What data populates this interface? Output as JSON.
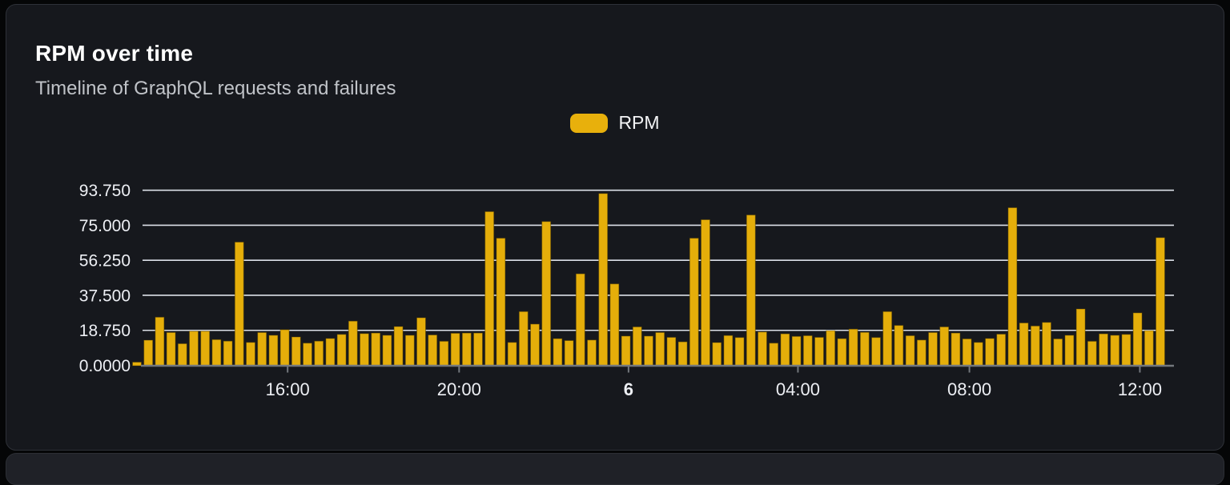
{
  "card": {
    "title": "RPM over time",
    "subtitle": "Timeline of GraphQL requests and failures"
  },
  "legend": {
    "items": [
      {
        "label": "RPM",
        "color": "#E8B00C"
      }
    ]
  },
  "chart_data": {
    "type": "bar",
    "title": "RPM over time",
    "subtitle": "Timeline of GraphQL requests and failures",
    "xlabel": "",
    "ylabel": "",
    "grid": true,
    "legend_position": "top-center",
    "y_max": 93.75,
    "y_ticks": [
      {
        "label": "0.0000",
        "value": 0
      },
      {
        "label": "18.750",
        "value": 18.75
      },
      {
        "label": "37.500",
        "value": 37.5
      },
      {
        "label": "56.250",
        "value": 56.25
      },
      {
        "label": "75.000",
        "value": 75
      },
      {
        "label": "93.750",
        "value": 93.75
      }
    ],
    "x_ticks": [
      {
        "label": "16:00",
        "pos": 0.142,
        "bold": false
      },
      {
        "label": "20:00",
        "pos": 0.308,
        "bold": false
      },
      {
        "label": "6",
        "pos": 0.472,
        "bold": true
      },
      {
        "label": "04:00",
        "pos": 0.636,
        "bold": false
      },
      {
        "label": "08:00",
        "pos": 0.802,
        "bold": false
      },
      {
        "label": "12:00",
        "pos": 0.967,
        "bold": false
      }
    ],
    "series": [
      {
        "name": "RPM",
        "color": "#E5AE0A",
        "values": [
          1.7,
          13.5,
          25.8,
          17.6,
          11.6,
          18.3,
          18.3,
          13.8,
          13,
          66,
          12.3,
          17.6,
          16.1,
          19.1,
          15.2,
          11.9,
          13,
          14.4,
          16.6,
          23.7,
          17,
          17.3,
          16.1,
          20.8,
          16.1,
          25.5,
          16.3,
          12.9,
          17.2,
          17.3,
          17.3,
          82.3,
          68.1,
          12.3,
          28.8,
          22.1,
          77,
          14.3,
          13.3,
          49,
          13.6,
          92,
          43.6,
          15.7,
          20.6,
          15.7,
          17.6,
          15,
          12.6,
          68.1,
          78,
          12.2,
          16,
          14.9,
          80.5,
          17.9,
          11.9,
          16.9,
          15.5,
          15.9,
          15,
          18.6,
          14.3,
          19.4,
          17.7,
          14.9,
          28.8,
          21.4,
          15.9,
          13.6,
          17.6,
          20.6,
          17.3,
          14.2,
          12.3,
          14.4,
          16.7,
          84.4,
          22.7,
          21.1,
          23,
          14.2,
          16.1,
          30.2,
          12.9,
          16.9,
          16.1,
          16.6,
          28.1,
          18.6,
          68.4
        ]
      }
    ]
  },
  "colors": {
    "page_bg": "#050607",
    "card_bg": "#16181D",
    "card_border": "#2E3138",
    "grid_line": "#DCE0E8",
    "axis_line": "#73777D",
    "tick_label": "#EDEFF4",
    "title": "#FFFFFF",
    "subtitle": "#C0C3C8",
    "bar": "#E5AE0A"
  }
}
